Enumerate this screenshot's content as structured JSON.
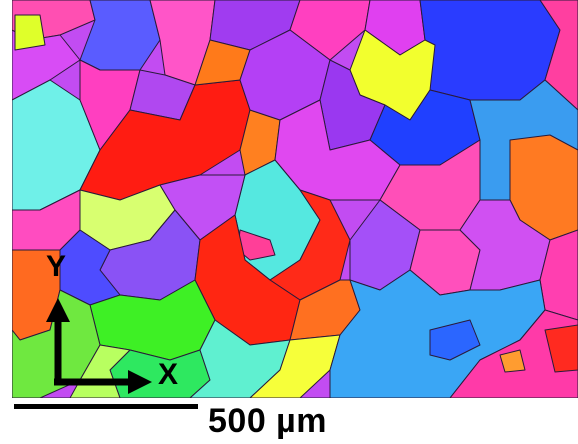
{
  "micrograph": {
    "description_icon": "ebsd-orientation-map",
    "palette": {
      "red": "#ff1a10",
      "orange": "#ff7a1a",
      "magenta": "#e14cf0",
      "violet": "#a84dff",
      "pink": "#ff5fa8",
      "blue": "#1a3cff",
      "skyblue": "#2f9bf0",
      "cyan": "#5ff0e6",
      "green": "#3cf020",
      "yellow": "#f4ff30",
      "lime": "#d8ff6a"
    }
  },
  "axes": {
    "y_label": "Y",
    "x_label": "X",
    "arrow_color": "#000000"
  },
  "scale_bar": {
    "label": "500 µm"
  }
}
